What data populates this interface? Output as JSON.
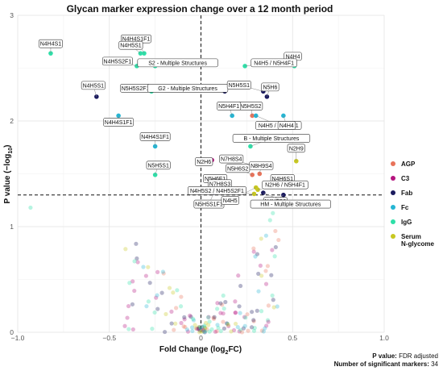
{
  "chart_data": {
    "type": "scatter",
    "title": "Glycan marker expression change over a 12 month period",
    "xlabel": "Fold Change (log",
    "xlabel_sub": "2",
    "xlabel_end": "FC)",
    "ylabel": "P value (−log",
    "ylabel_sub": "10",
    "ylabel_end": ")",
    "xlim": [
      -1.0,
      1.0
    ],
    "ylim": [
      0,
      3
    ],
    "x_ticks": [
      -1.0,
      -0.5,
      0.0,
      0.5,
      1.0
    ],
    "x_tick_labels": [
      "−1.0",
      "−0.5",
      "0",
      "0.5",
      "1.0"
    ],
    "y_ticks": [
      0,
      1,
      2,
      3
    ],
    "y_tick_labels": [
      "0",
      "1",
      "2",
      "3"
    ],
    "grid": true,
    "thresholds": {
      "fold_change": 0,
      "p_value": 1.3
    },
    "legend_position": "right",
    "series": [
      {
        "name": "AGP",
        "color": "#e8735a"
      },
      {
        "name": "C3",
        "color": "#b5147f"
      },
      {
        "name": "Fab",
        "color": "#1a1a5e"
      },
      {
        "name": "Fc",
        "color": "#25b5d3"
      },
      {
        "name": "IgG",
        "color": "#2edfa8"
      },
      {
        "name": "Serum\nN-glycome",
        "color": "#c8c820"
      }
    ],
    "significant_points": [
      {
        "label": "N4H4S1",
        "x": -0.82,
        "y": 2.64,
        "series": "IgG"
      },
      {
        "label": "N4H4S1F1",
        "x": -0.31,
        "y": 2.64,
        "series": "IgG"
      },
      {
        "label": "N4H5S1",
        "x": -0.33,
        "y": 2.64,
        "series": "IgG"
      },
      {
        "label": "N4H5S2F1",
        "x": -0.35,
        "y": 2.52,
        "series": "IgG"
      },
      {
        "label": "S2 - Multiple Structures",
        "x": -0.25,
        "y": 2.52,
        "series": "IgG"
      },
      {
        "label": "N4H5S1",
        "x": -0.57,
        "y": 2.23,
        "series": "Fab"
      },
      {
        "label": "N5H5S2F1",
        "x": -0.27,
        "y": 2.28,
        "series": "IgG"
      },
      {
        "label": "G2 - Multiple Structures",
        "x": 0.13,
        "y": 2.28,
        "series": "Fab"
      },
      {
        "label": "N4H4S1F1",
        "x": -0.45,
        "y": 2.05,
        "series": "Fc"
      },
      {
        "label": "N4H4",
        "x": 0.51,
        "y": 2.52,
        "series": "IgG"
      },
      {
        "label": "N4H5 / N5H4F1",
        "x": 0.24,
        "y": 2.52,
        "series": "IgG"
      },
      {
        "label": "N5H5S1",
        "x": 0.34,
        "y": 2.28,
        "series": "Fab"
      },
      {
        "label": "N5H6",
        "x": 0.36,
        "y": 2.23,
        "series": "Fab"
      },
      {
        "label": "N5H5S2",
        "x": 0.28,
        "y": 2.05,
        "series": "AGP"
      },
      {
        "label": "N5H4F1",
        "x": 0.17,
        "y": 2.05,
        "series": "Fc"
      },
      {
        "label": "N4H5 / N5H4F1",
        "x": 0.3,
        "y": 2.05,
        "series": "Fc"
      },
      {
        "label": "N4H4",
        "x": 0.45,
        "y": 2.05,
        "series": "Fc"
      },
      {
        "label": "N4H4S1F1",
        "x": -0.25,
        "y": 1.76,
        "series": "Fc"
      },
      {
        "label": "B - Multiple Structures",
        "x": 0.27,
        "y": 1.76,
        "series": "IgG"
      },
      {
        "label": "N2H6",
        "x": 0.06,
        "y": 1.63,
        "series": "C3"
      },
      {
        "label": "N2H9",
        "x": 0.52,
        "y": 1.62,
        "series": "Serum\nN-glycome"
      },
      {
        "label": "N7H8S4",
        "x": 0.28,
        "y": 1.58,
        "series": "AGP"
      },
      {
        "label": "N8H9S4",
        "x": 0.32,
        "y": 1.5,
        "series": "AGP"
      },
      {
        "label": "N5H6S2",
        "x": 0.28,
        "y": 1.49,
        "series": "AGP"
      },
      {
        "label": "N5H5S1",
        "x": -0.25,
        "y": 1.49,
        "series": "IgG"
      },
      {
        "label": "N5H6F1",
        "x": 0.13,
        "y": 1.47,
        "series": "Fab"
      },
      {
        "label": "N4H6S1",
        "x": 0.41,
        "y": 1.47,
        "series": "Fc"
      },
      {
        "label": "N7H8S3",
        "x": 0.2,
        "y": 1.36,
        "series": "AGP"
      },
      {
        "label": "N2H6 / N5H4F1",
        "x": 0.31,
        "y": 1.35,
        "series": "Serum\nN-glycome"
      },
      {
        "label": "N4H5S2",
        "x": 0.45,
        "y": 1.3,
        "series": "Fab"
      },
      {
        "label": "N4H5S2 / N4H5S2F1",
        "x": 0.29,
        "y": 1.31,
        "series": "Serum\nN-glycome"
      },
      {
        "label": "N5H5S1F1",
        "x": 0.07,
        "y": 1.32,
        "series": "Fab"
      },
      {
        "label": "N4H5",
        "x": 0.3,
        "y": 1.37,
        "series": "Serum\nN-glycome"
      },
      {
        "label": "HM - Multiple Structures",
        "x": 0.34,
        "y": 1.32,
        "series": "Fab"
      }
    ],
    "footer": {
      "p_value_label": "P value:",
      "p_value_text": "FDR adjusted",
      "n_sig_label": "Number of significant markers:",
      "n_sig_value": "34"
    }
  }
}
